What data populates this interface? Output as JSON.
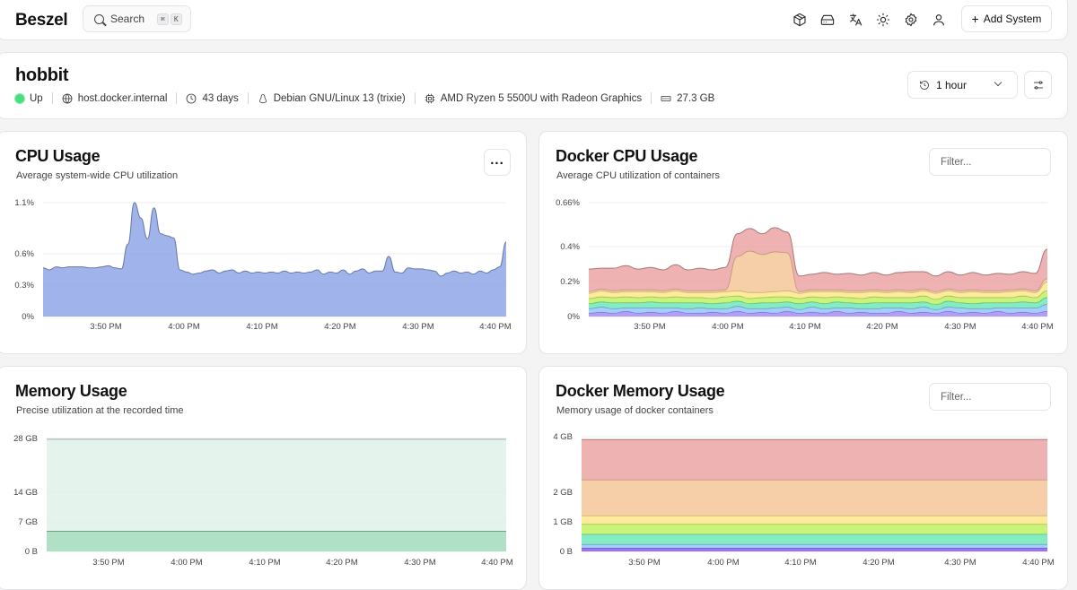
{
  "header": {
    "logo": "Beszel",
    "search_label": "Search",
    "search_kbd": [
      "⌘",
      "K"
    ],
    "icons": [
      "package-icon",
      "hard-drive-icon",
      "languages-icon",
      "sun-icon",
      "gear-icon",
      "user-icon"
    ],
    "add_system_label": "Add System"
  },
  "system": {
    "name": "hobbit",
    "status": "Up",
    "status_color": "#4ade80",
    "host": "host.docker.internal",
    "uptime": "43 days",
    "os": "Debian GNU/Linux 13 (trixie)",
    "cpu": "AMD Ryzen 5 5500U with Radeon Graphics",
    "memory": "27.3 GB",
    "time_range": "1 hour"
  },
  "cards": {
    "cpu": {
      "title": "CPU Usage",
      "subtitle": "Average system-wide CPU utilization",
      "more_label": "..."
    },
    "docker_cpu": {
      "title": "Docker CPU Usage",
      "subtitle": "Average CPU utilization of containers",
      "filter_placeholder": "Filter..."
    },
    "memory": {
      "title": "Memory Usage",
      "subtitle": "Precise utilization at the recorded time"
    },
    "docker_memory": {
      "title": "Docker Memory Usage",
      "subtitle": "Memory usage of docker containers",
      "filter_placeholder": "Filter..."
    }
  },
  "chart_data": [
    {
      "type": "area",
      "x_ticks": [
        "3:50 PM",
        "4:00 PM",
        "4:10 PM",
        "4:20 PM",
        "4:30 PM",
        "4:40 PM"
      ],
      "y_ticks": [
        "1.1%",
        "0.6%",
        "0.3%",
        "0%"
      ],
      "ylim": [
        0,
        1.1
      ],
      "series": [
        {
          "color": "#8fa6e6",
          "values": [
            0.47,
            0.45,
            0.48,
            0.47,
            0.48,
            0.48,
            0.48,
            0.47,
            0.47,
            0.48,
            0.49,
            0.47,
            0.46,
            0.7,
            1.1,
            0.95,
            0.75,
            1.05,
            0.8,
            0.78,
            0.76,
            0.45,
            0.43,
            0.41,
            0.42,
            0.44,
            0.45,
            0.42,
            0.44,
            0.45,
            0.42,
            0.44,
            0.42,
            0.43,
            0.42,
            0.43,
            0.42,
            0.44,
            0.42,
            0.43,
            0.42,
            0.43,
            0.45,
            0.41,
            0.43,
            0.42,
            0.45,
            0.41,
            0.44,
            0.46,
            0.42,
            0.44,
            0.44,
            0.58,
            0.43,
            0.42,
            0.47,
            0.46,
            0.46,
            0.45,
            0.44,
            0.39,
            0.42,
            0.44,
            0.42,
            0.43,
            0.41,
            0.44,
            0.42,
            0.45,
            0.48,
            0.72
          ]
        }
      ]
    },
    {
      "type": "area",
      "stacked": true,
      "x_ticks": [
        "3:50 PM",
        "4:00 PM",
        "4:10 PM",
        "4:20 PM",
        "4:30 PM",
        "4:40 PM"
      ],
      "y_ticks": [
        "0.66%",
        "0.4%",
        "0.2%",
        "0%"
      ],
      "ylim": [
        0,
        0.66
      ],
      "series": [
        {
          "color": "#a78bfa",
          "values": [
            0.02,
            0.025,
            0.02,
            0.03,
            0.02,
            0.025,
            0.02,
            0.03,
            0.02,
            0.02,
            0.025,
            0.02,
            0.03,
            0.02,
            0.025,
            0.02,
            0.03,
            0.02,
            0.025,
            0.02,
            0.03,
            0.02,
            0.025,
            0.02,
            0.02,
            0.03,
            0.02,
            0.025,
            0.02,
            0.03,
            0.02,
            0.025,
            0.02,
            0.03,
            0.02,
            0.025,
            0.02,
            0.03
          ]
        },
        {
          "color": "#93c5fd",
          "values": [
            0.025,
            0.03,
            0.025,
            0.02,
            0.03,
            0.025,
            0.03,
            0.02,
            0.025,
            0.03,
            0.02,
            0.025,
            0.03,
            0.025,
            0.02,
            0.03,
            0.025,
            0.02,
            0.03,
            0.025,
            0.02,
            0.03,
            0.02,
            0.025,
            0.03,
            0.02,
            0.025,
            0.03,
            0.02,
            0.025,
            0.03,
            0.02,
            0.025,
            0.02,
            0.03,
            0.025,
            0.03,
            0.04
          ]
        },
        {
          "color": "#6ee7b7",
          "values": [
            0.03,
            0.03,
            0.035,
            0.03,
            0.03,
            0.035,
            0.03,
            0.03,
            0.035,
            0.03,
            0.03,
            0.035,
            0.03,
            0.03,
            0.035,
            0.03,
            0.03,
            0.035,
            0.03,
            0.03,
            0.035,
            0.03,
            0.03,
            0.035,
            0.03,
            0.03,
            0.035,
            0.03,
            0.03,
            0.035,
            0.03,
            0.03,
            0.035,
            0.03,
            0.03,
            0.035,
            0.03,
            0.04
          ]
        },
        {
          "color": "#bef264",
          "values": [
            0.03,
            0.03,
            0.03,
            0.035,
            0.03,
            0.03,
            0.03,
            0.035,
            0.03,
            0.03,
            0.03,
            0.035,
            0.03,
            0.03,
            0.03,
            0.035,
            0.03,
            0.03,
            0.03,
            0.035,
            0.03,
            0.03,
            0.03,
            0.035,
            0.03,
            0.03,
            0.03,
            0.035,
            0.03,
            0.03,
            0.03,
            0.035,
            0.03,
            0.03,
            0.03,
            0.035,
            0.03,
            0.04
          ]
        },
        {
          "color": "#fde68a",
          "values": [
            0.03,
            0.035,
            0.03,
            0.03,
            0.035,
            0.03,
            0.03,
            0.035,
            0.03,
            0.03,
            0.035,
            0.03,
            0.03,
            0.035,
            0.03,
            0.03,
            0.035,
            0.03,
            0.03,
            0.035,
            0.03,
            0.03,
            0.035,
            0.03,
            0.03,
            0.035,
            0.03,
            0.03,
            0.035,
            0.03,
            0.03,
            0.035,
            0.03,
            0.03,
            0.035,
            0.03,
            0.03,
            0.05
          ]
        },
        {
          "color": "#f5c79a",
          "values": [
            0.01,
            0.01,
            0.01,
            0.01,
            0.01,
            0.01,
            0.01,
            0.01,
            0.01,
            0.01,
            0.01,
            0.01,
            0.2,
            0.24,
            0.22,
            0.23,
            0.22,
            0.01,
            0.01,
            0.01,
            0.01,
            0.01,
            0.01,
            0.01,
            0.01,
            0.01,
            0.01,
            0.01,
            0.01,
            0.01,
            0.01,
            0.01,
            0.01,
            0.01,
            0.01,
            0.01,
            0.01,
            0.02
          ]
        },
        {
          "color": "#eba4a4",
          "values": [
            0.13,
            0.12,
            0.13,
            0.14,
            0.12,
            0.13,
            0.12,
            0.14,
            0.12,
            0.13,
            0.12,
            0.13,
            0.13,
            0.13,
            0.12,
            0.14,
            0.12,
            0.09,
            0.09,
            0.1,
            0.09,
            0.1,
            0.09,
            0.1,
            0.09,
            0.1,
            0.11,
            0.1,
            0.09,
            0.1,
            0.09,
            0.1,
            0.09,
            0.1,
            0.09,
            0.1,
            0.1,
            0.17
          ]
        }
      ]
    },
    {
      "type": "area",
      "x_ticks": [
        "3:50 PM",
        "4:00 PM",
        "4:10 PM",
        "4:20 PM",
        "4:30 PM",
        "4:40 PM"
      ],
      "y_ticks": [
        "28 GB",
        "14 GB",
        "7 GB",
        "0 B"
      ],
      "ylim": [
        0,
        28
      ],
      "series": [
        {
          "color": "#a7dcc0",
          "values": [
            5,
            5
          ]
        },
        {
          "color": "#dff1e7",
          "values": [
            27.8,
            27.8
          ]
        }
      ]
    },
    {
      "type": "area",
      "stacked": true,
      "x_ticks": [
        "3:50 PM",
        "4:00 PM",
        "4:10 PM",
        "4:20 PM",
        "4:30 PM",
        "4:40 PM"
      ],
      "y_ticks": [
        "4 GB",
        "2 GB",
        "1 GB",
        "0 B"
      ],
      "ylim": [
        0,
        4
      ],
      "series": [
        {
          "color": "#8b5cf6",
          "values": [
            0.12,
            0.12
          ]
        },
        {
          "color": "#93c5fd",
          "values": [
            0.13,
            0.13
          ]
        },
        {
          "color": "#6ee7b7",
          "values": [
            0.35,
            0.35
          ]
        },
        {
          "color": "#bef264",
          "values": [
            0.35,
            0.35
          ]
        },
        {
          "color": "#fde68a",
          "values": [
            0.3,
            0.3
          ]
        },
        {
          "color": "#f5c79a",
          "values": [
            1.25,
            1.25
          ]
        },
        {
          "color": "#eba4a4",
          "values": [
            1.4,
            1.4
          ]
        }
      ]
    }
  ]
}
